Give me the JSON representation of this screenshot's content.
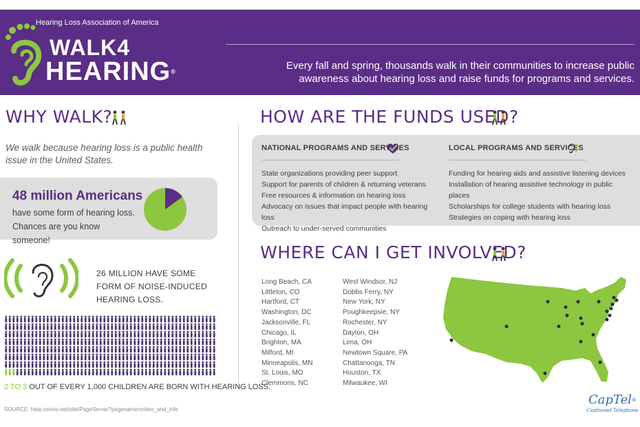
{
  "header": {
    "org_name": "Hearing Loss Association of America",
    "logo_line1": "WALK4",
    "logo_line2": "HEARING",
    "logo_reg": "®",
    "tagline": "Every fall and spring, thousands walk in their communities to increase public awareness about hearing loss and raise funds for programs and services."
  },
  "why_walk": {
    "title": "WHY WALK?",
    "text": "We walk because hearing loss is a public health issue in the United States.",
    "stat_big": "48 million Americans",
    "stat_sub": "have some form of hearing loss. Chances are you know someone!",
    "pie_fraction": 0.15,
    "noise_text": "26 million have some form of noise-induced hearing loss.",
    "children_hl": "2 to 3",
    "children_rest": " out of every 1,000 children are born with hearing loss.",
    "source": "SOURCE: hlaa.convio.net/site/PageServer?pagename=video_and_info"
  },
  "funds": {
    "title": "HOW ARE THE FUNDS USED?",
    "national_title": "NATIONAL PROGRAMS AND SERVICES",
    "national_items": [
      "State organizations providing peer support",
      "Support for parents of children & returning veterans",
      "Free resources & information on hearing loss",
      "Advocacy on issues that impact people with hearing loss",
      "Outreach to under-served communities"
    ],
    "local_title": "LOCAL PROGRAMS AND SERVICES",
    "local_items": [
      "Funding for hearing aids and assistive listening devices",
      "Installation of hearing assistive technology in public places",
      "Scholarships for college students with hearing loss",
      "Strategies on coping with hearing loss"
    ]
  },
  "involved": {
    "title": "WHERE CAN I GET INVOLVED?",
    "locations_col1": [
      "Long Beach, CA",
      "Littleton, CO",
      "Hartford, CT",
      "Washington, DC",
      "Jacksonville, FL",
      "Chicago, IL",
      "Brighton, MA",
      "Milford, MI",
      "Minneapolis, MN",
      "St. Louis, MO",
      "Clemmons, NC"
    ],
    "locations_col2": [
      "West Windsor, NJ",
      "Dobbs Ferry, NY",
      "New York, NY",
      "Poughkeepsie, NY",
      "Rochester, NY",
      "Dayton, OH",
      "Lima, OH",
      "Newtown Square, PA",
      "Chattanooga, TN",
      "Houston, TX",
      "Milwaukee, WI"
    ]
  },
  "sponsor": {
    "name": "CapTel",
    "reg": "®",
    "sub": "Captioned Telephone"
  },
  "colors": {
    "purple": "#5a2d86",
    "green": "#8dc63f",
    "gray_box": "#dedede",
    "captel_blue": "#2a6eb5"
  },
  "icons": {
    "logo": "footprint-ear-icon",
    "walkers": "walking-people-icon",
    "ear": "ear-sound-waves-icon",
    "national": "heart-check-icon",
    "local": "ear-small-icon",
    "children": "people-figures-icon",
    "map": "usa-map-icon"
  }
}
